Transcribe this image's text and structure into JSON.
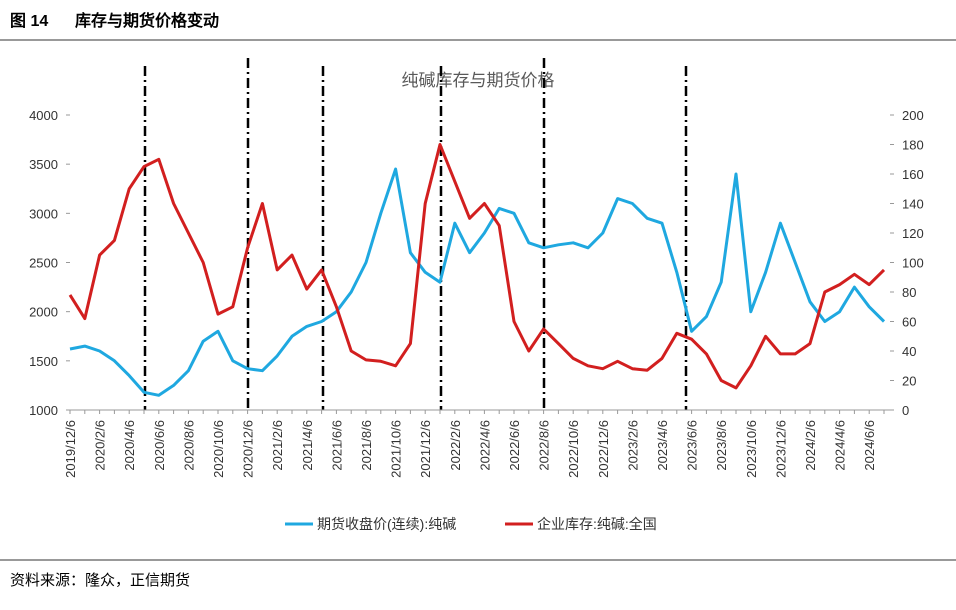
{
  "header": {
    "figure": "图 14",
    "title": "库存与期货价格变动"
  },
  "source": "资料来源：隆众，正信期货",
  "chart_data": {
    "type": "line",
    "title": "纯碱库存与期货价格",
    "categories": [
      "2019/12/6",
      null,
      "2020/2/6",
      null,
      "2020/4/6",
      null,
      "2020/6/6",
      null,
      "2020/8/6",
      null,
      "2020/10/6",
      null,
      "2020/12/6",
      null,
      "2021/2/6",
      null,
      "2021/4/6",
      null,
      "2021/6/6",
      null,
      "2021/8/6",
      null,
      "2021/10/6",
      null,
      "2021/12/6",
      null,
      "2022/2/6",
      null,
      "2022/4/6",
      null,
      "2022/6/6",
      null,
      "2022/8/6",
      null,
      "2022/10/6",
      null,
      "2022/12/6",
      null,
      "2023/2/6",
      null,
      "2023/4/6",
      null,
      "2023/6/6",
      null,
      "2023/8/6",
      null,
      "2023/10/6",
      null,
      "2023/12/6",
      null,
      "2024/2/6",
      null,
      "2024/4/6",
      null,
      "2024/6/6",
      null
    ],
    "series": [
      {
        "name": "期货收盘价(连续):纯碱",
        "color": "#1fa8e0",
        "values": [
          1620,
          1650,
          1600,
          1500,
          1350,
          1180,
          1150,
          1250,
          1400,
          1700,
          1800,
          1500,
          1420,
          1400,
          1550,
          1750,
          1850,
          1900,
          2000,
          2200,
          2500,
          3000,
          3450,
          2600,
          2400,
          2300,
          2900,
          2600,
          2800,
          3050,
          3000,
          2700,
          2650,
          2680,
          2700,
          2650,
          2800,
          3150,
          3100,
          2950,
          2900,
          2400,
          1800,
          1950,
          2300,
          3400,
          2000,
          2400,
          2900,
          2500,
          2100,
          1900,
          2000,
          2250,
          2050,
          1900
        ]
      },
      {
        "name": "企业库存:纯碱:全国",
        "color": "#d21f1f",
        "axis": "y2",
        "values": [
          78,
          62,
          105,
          115,
          150,
          165,
          170,
          140,
          120,
          100,
          65,
          70,
          110,
          140,
          95,
          105,
          82,
          95,
          70,
          40,
          34,
          33,
          30,
          45,
          140,
          180,
          155,
          130,
          140,
          125,
          60,
          40,
          55,
          45,
          35,
          30,
          28,
          33,
          28,
          27,
          35,
          52,
          48,
          38,
          20,
          15,
          30,
          50,
          38,
          38,
          45,
          80,
          85,
          92,
          85,
          95
        ]
      }
    ],
    "ylim": [
      1000,
      4000
    ],
    "yticks": [
      1000,
      1500,
      2000,
      2500,
      3000,
      3500,
      4000
    ],
    "y2lim": [
      0,
      200
    ],
    "y2ticks": [
      0,
      20,
      40,
      60,
      80,
      100,
      120,
      140,
      160,
      180,
      200
    ]
  }
}
